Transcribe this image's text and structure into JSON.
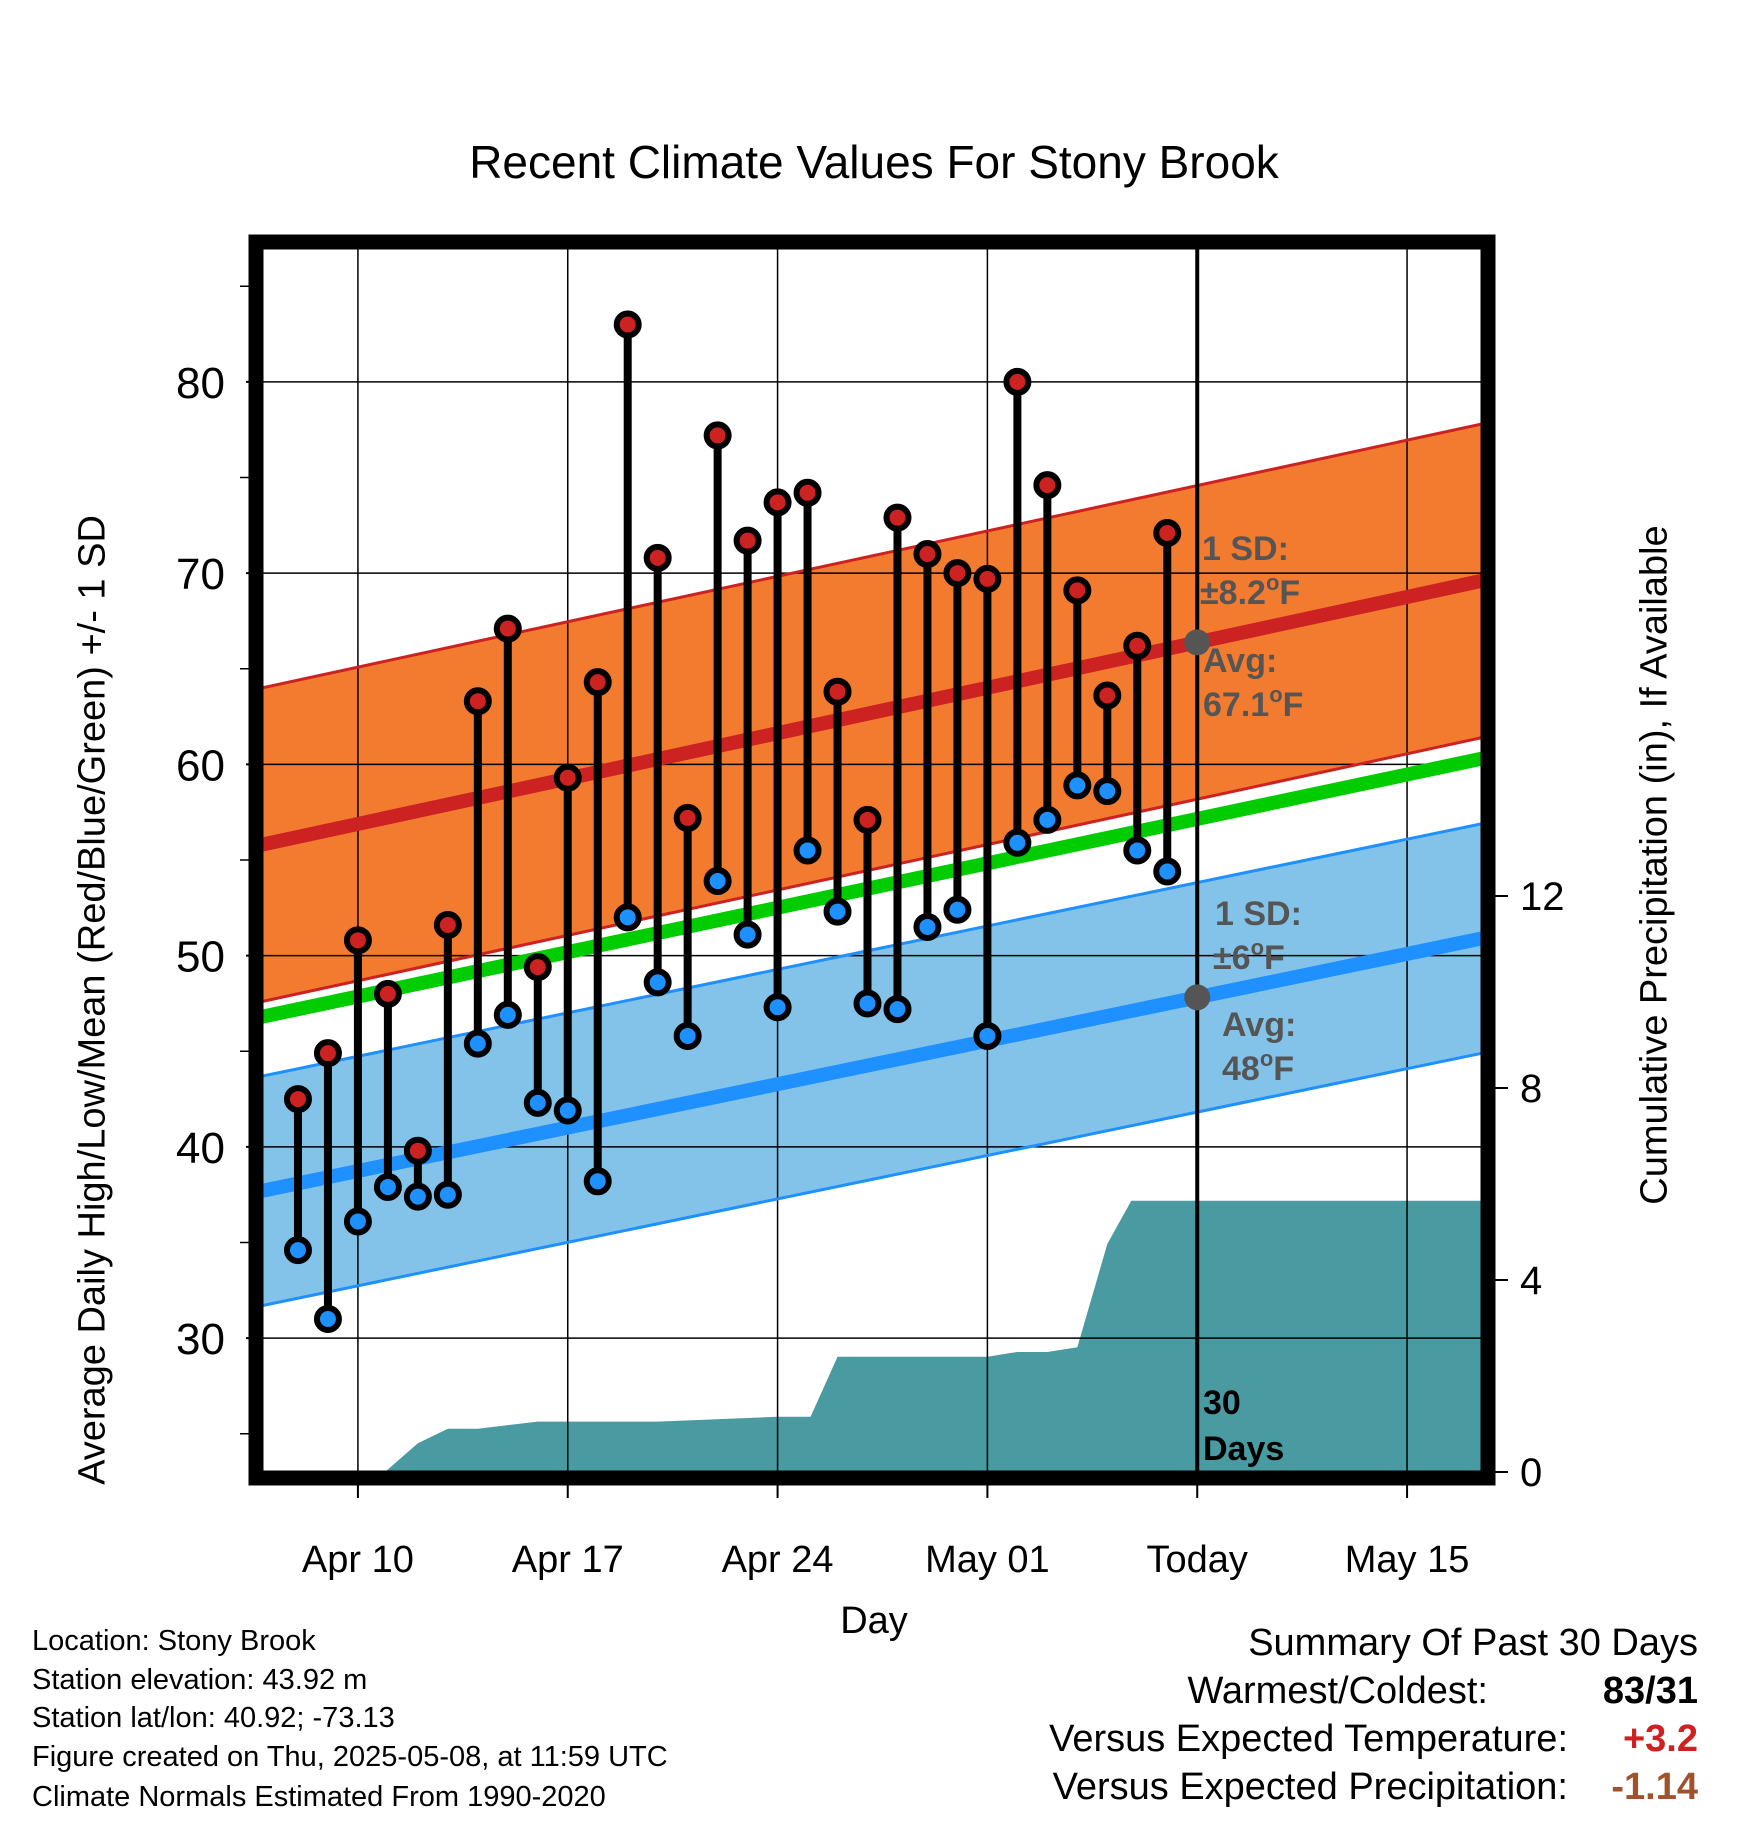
{
  "title": "Recent Climate Values For Stony Brook",
  "chart_data": {
    "type": "line",
    "title": "Recent Climate Values For Stony Brook",
    "xlabel": "Day",
    "ylabel": "Average Daily High/Low/Mean (Red/Blue/Green) +/- 1 SD",
    "ylabel_right": "Cumulative Precipitation (in), If Available",
    "x_ticks": [
      "Apr 10",
      "Apr 17",
      "Apr 24",
      "May 01",
      "Today",
      "May 15"
    ],
    "x_tick_day": [
      0,
      7,
      14,
      21,
      28,
      35
    ],
    "x_range": [
      -3.2,
      37.5
    ],
    "y_ticks": [
      30,
      40,
      50,
      60,
      70,
      80
    ],
    "ylim": [
      23,
      87
    ],
    "y_right_ticks": [
      0,
      4,
      8,
      12
    ],
    "y_right_lim": [
      0,
      25.5
    ],
    "grid": true,
    "today_day": 28,
    "days": [
      -2,
      -1,
      0,
      1,
      2,
      3,
      4,
      5,
      6,
      7,
      8,
      9,
      10,
      11,
      12,
      13,
      14,
      15,
      16,
      17,
      18,
      19,
      20,
      21,
      22,
      23,
      24,
      25,
      26,
      27
    ],
    "highs": [
      42.5,
      44.9,
      50.8,
      48.0,
      39.8,
      51.6,
      63.3,
      67.1,
      49.4,
      59.3,
      64.3,
      83.0,
      70.8,
      57.2,
      77.2,
      71.7,
      73.7,
      74.2,
      63.8,
      57.1,
      72.9,
      71.0,
      70.0,
      69.7,
      80.0,
      74.6,
      69.1,
      63.6,
      66.2,
      72.1
    ],
    "lows": [
      34.6,
      31.0,
      36.1,
      37.9,
      37.4,
      37.5,
      45.4,
      46.9,
      42.3,
      41.9,
      38.2,
      52.0,
      48.6,
      45.8,
      53.9,
      51.1,
      47.3,
      55.5,
      52.3,
      47.5,
      47.2,
      51.5,
      52.4,
      45.8,
      55.9,
      57.1,
      58.9,
      58.6,
      55.5,
      54.4
    ],
    "normal_high": {
      "start": 55.8,
      "end": 69.6,
      "sd": 8.2
    },
    "normal_low": {
      "start": 37.7,
      "end": 50.9,
      "sd": 6
    },
    "normal_mean": {
      "start": 46.8,
      "end": 60.3
    },
    "precip_cumulative": {
      "x": [
        -3.2,
        0.9,
        2.0,
        3.0,
        4.0,
        6.0,
        10.0,
        14.0,
        15.1,
        16.0,
        21.0,
        22.0,
        23.0,
        24.0,
        25.0,
        25.8,
        26.2,
        37.5
      ],
      "y": [
        0,
        0,
        0.6,
        0.9,
        0.9,
        1.05,
        1.05,
        1.15,
        1.15,
        2.4,
        2.4,
        2.5,
        2.5,
        2.6,
        4.75,
        5.65,
        5.65,
        5.65
      ]
    },
    "series": [
      {
        "name": "High",
        "color": "#cc2222"
      },
      {
        "name": "Low",
        "color": "#1e90ff"
      },
      {
        "name": "Mean",
        "color": "#00cc00"
      }
    ],
    "colors": {
      "high_band": "#f37b2f",
      "low_band": "#83c3e9",
      "precip": "#4a9aa2",
      "today_marker": "#555555",
      "annotation": "#555555"
    },
    "annotations": {
      "high_sd_label": "1 SD:",
      "high_sd_value": "±8.2",
      "high_avg_label": "Avg:",
      "high_avg_value": "67.1",
      "low_sd_label": "1 SD:",
      "low_sd_value": "±6",
      "low_avg_label": "Avg:",
      "low_avg_value": "48",
      "degree_unit": "o",
      "unit_F": "F",
      "days_window_count": "30",
      "days_window_word": "Days"
    }
  },
  "footer": {
    "location": "Location: Stony Brook",
    "elevation": "Station elevation: 43.92 m",
    "latlon": "Station lat/lon: 40.92; -73.13",
    "created": "Figure created on Thu, 2025-05-08, at 11:59 UTC",
    "normals": "Climate Normals Estimated From 1990-2020"
  },
  "summary": {
    "heading": "Summary Of Past 30 Days",
    "warm_cold_label": "Warmest/Coldest:",
    "warm_cold_value": "83/31",
    "temp_label": "Versus Expected Temperature:",
    "temp_value": "+3.2",
    "temp_color": "#cc2222",
    "precip_label": "Versus Expected Precipitation:",
    "precip_value": "-1.14",
    "precip_color": "#a0522d"
  }
}
